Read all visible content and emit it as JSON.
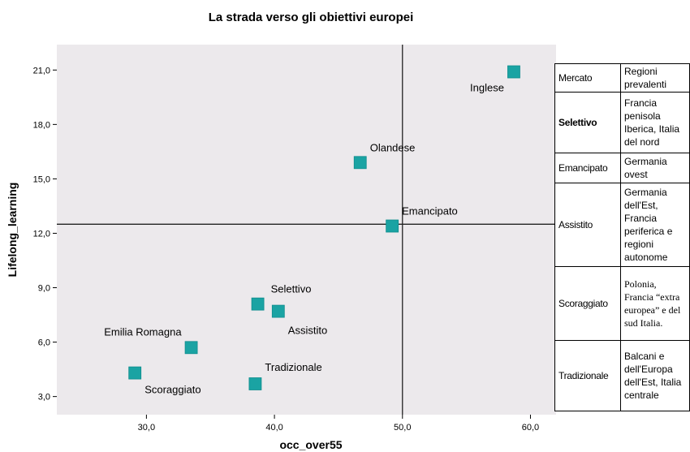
{
  "chart_data": {
    "type": "scatter",
    "title": "La strada verso gli obiettivi europei",
    "xlabel": "occ_over55",
    "ylabel": "Lifelong_learning",
    "xlim": [
      23.0,
      62.0
    ],
    "ylim": [
      2.0,
      22.4
    ],
    "xticks": [
      30,
      40,
      50,
      60
    ],
    "xtick_labels": [
      "30,0",
      "40,0",
      "50,0",
      "60,0"
    ],
    "yticks": [
      3,
      6,
      9,
      12,
      15,
      18,
      21
    ],
    "ytick_labels": [
      "3,0",
      "6,0",
      "9,0",
      "12,0",
      "15,0",
      "18,0",
      "21,0"
    ],
    "reference_lines": {
      "x": 50.0,
      "y": 12.5
    },
    "marker_color": "#1aa3a3",
    "grid": false,
    "points": [
      {
        "label": "Inglese",
        "x": 58.7,
        "y": 20.9
      },
      {
        "label": "Olandese",
        "x": 46.7,
        "y": 15.9
      },
      {
        "label": "Emancipato",
        "x": 49.2,
        "y": 12.4
      },
      {
        "label": "Selettivo",
        "x": 38.7,
        "y": 8.1
      },
      {
        "label": "Assistito",
        "x": 40.3,
        "y": 7.7
      },
      {
        "label": "Emilia Romagna",
        "x": 33.5,
        "y": 5.7
      },
      {
        "label": "Tradizionale",
        "x": 38.5,
        "y": 3.7
      },
      {
        "label": "Scoraggiato",
        "x": 29.1,
        "y": 4.3
      }
    ]
  },
  "legend_table": {
    "header": {
      "key": "Mercato",
      "value": "Regioni prevalenti"
    },
    "rows": [
      {
        "key": "Selettivo",
        "value": "Francia penisola Iberica, Italia del nord"
      },
      {
        "key": "Emancipato",
        "value": "Germania ovest"
      },
      {
        "key": "Assistito",
        "value": "Germania dell'Est, Francia periferica e regioni autonome"
      },
      {
        "key": "Scoraggiato",
        "value": "Polonia, Francia “extra europea” e del sud Italia."
      },
      {
        "key": "Tradizionale",
        "value": "Balcani e dell'Europa dell'Est, Italia centrale"
      }
    ]
  }
}
